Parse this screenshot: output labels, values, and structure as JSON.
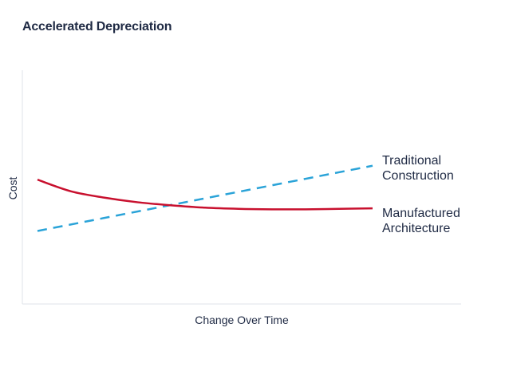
{
  "chart_data": {
    "type": "line",
    "title": "Accelerated Depreciation",
    "xlabel": "Change Over Time",
    "ylabel": "Cost",
    "grid": false,
    "legend": "inline-right",
    "xlim": [
      0,
      1
    ],
    "ylim": [
      0,
      1
    ],
    "series": [
      {
        "name_lines": [
          "Traditional",
          "Construction"
        ],
        "style": "dashed",
        "color": "#2aa3d8",
        "x": [
          0,
          1
        ],
        "y": [
          0.31,
          0.59
        ]
      },
      {
        "name_lines": [
          "Manufactured",
          "Architecture"
        ],
        "style": "solid",
        "color": "#c8102e",
        "x": [
          0,
          0.1,
          0.2,
          0.3,
          0.4,
          0.5,
          0.6,
          0.7,
          0.8,
          0.9,
          1.0
        ],
        "y": [
          0.53,
          0.48,
          0.453,
          0.433,
          0.42,
          0.41,
          0.405,
          0.403,
          0.403,
          0.405,
          0.407
        ]
      }
    ]
  }
}
